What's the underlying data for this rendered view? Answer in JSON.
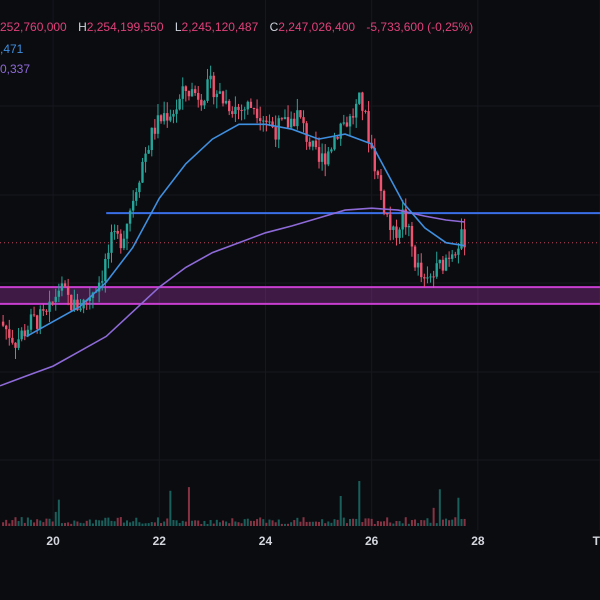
{
  "legend": {
    "o_value": "252,760,000",
    "h_key": "H",
    "h_value": "2,254,199,550",
    "l_key": "L",
    "l_value": "2,245,120,487",
    "c_key": "C",
    "c_value": "2,247,026,400",
    "change": "-5,733,600 (-0,25%)",
    "ma_fast": ",471",
    "ma_slow": "0,337"
  },
  "colors": {
    "background": "#0b0c10",
    "up": "#26a69a",
    "down": "#ef5370",
    "ma_fast": "#3f8fe0",
    "ma_slow": "#8e6ad8",
    "zone": "#c83fd0",
    "hline": "#3a6fe8",
    "price_line": "#ef5370"
  },
  "chart_data": {
    "type": "candlestick",
    "x_ticks": [
      {
        "label": "20",
        "day": 20
      },
      {
        "label": "22",
        "day": 22
      },
      {
        "label": "24",
        "day": 24
      },
      {
        "label": "26",
        "day": 26
      },
      {
        "label": "28",
        "day": 28
      },
      {
        "label": "Th",
        "day": 30.3
      }
    ],
    "x_range": [
      19.0,
      30.3
    ],
    "y_range": [
      2226.0,
      2264.0
    ],
    "y_unit_note": "",
    "close_path": [
      [
        19.0,
        2238.5
      ],
      [
        19.3,
        2236.5
      ],
      [
        19.6,
        2238.5
      ],
      [
        19.9,
        2239.0
      ],
      [
        20.1,
        2242.0
      ],
      [
        20.4,
        2240.0
      ],
      [
        20.6,
        2240.5
      ],
      [
        20.9,
        2243.0
      ],
      [
        21.1,
        2246.5
      ],
      [
        21.3,
        2247.0
      ],
      [
        21.5,
        2251.0
      ],
      [
        21.7,
        2255.0
      ],
      [
        21.9,
        2258.0
      ],
      [
        22.1,
        2259.5
      ],
      [
        22.3,
        2260.0
      ],
      [
        22.5,
        2262.0
      ],
      [
        22.8,
        2261.5
      ],
      [
        23.0,
        2262.5
      ],
      [
        23.2,
        2261.0
      ],
      [
        23.5,
        2260.0
      ],
      [
        23.8,
        2260.5
      ],
      [
        24.0,
        2259.0
      ],
      [
        24.2,
        2258.0
      ],
      [
        24.4,
        2258.5
      ],
      [
        24.6,
        2259.5
      ],
      [
        24.8,
        2257.0
      ],
      [
        25.0,
        2254.5
      ],
      [
        25.2,
        2256.0
      ],
      [
        25.4,
        2258.5
      ],
      [
        25.6,
        2259.0
      ],
      [
        25.8,
        2261.0
      ],
      [
        26.0,
        2256.0
      ],
      [
        26.2,
        2251.0
      ],
      [
        26.4,
        2247.0
      ],
      [
        26.6,
        2249.5
      ],
      [
        26.8,
        2245.0
      ],
      [
        27.0,
        2242.0
      ],
      [
        27.2,
        2243.5
      ],
      [
        27.4,
        2245.0
      ],
      [
        27.6,
        2246.5
      ],
      [
        27.75,
        2247.0
      ]
    ],
    "volume": "random low bars, occasional spikes",
    "ma_fast_points": [
      [
        19.5,
        2237.0
      ],
      [
        20.0,
        2238.5
      ],
      [
        20.5,
        2240.0
      ],
      [
        21.0,
        2242.5
      ],
      [
        21.5,
        2246.0
      ],
      [
        22.0,
        2251.0
      ],
      [
        22.5,
        2254.5
      ],
      [
        23.0,
        2257.0
      ],
      [
        23.5,
        2258.5
      ],
      [
        24.0,
        2258.5
      ],
      [
        24.5,
        2258.0
      ],
      [
        25.0,
        2257.0
      ],
      [
        25.5,
        2257.5
      ],
      [
        26.0,
        2256.5
      ],
      [
        26.3,
        2253.5
      ],
      [
        26.6,
        2250.5
      ],
      [
        27.0,
        2248.0
      ],
      [
        27.4,
        2246.5
      ],
      [
        27.75,
        2246.2
      ]
    ],
    "ma_slow_points": [
      [
        19.0,
        2232.0
      ],
      [
        19.5,
        2233.0
      ],
      [
        20.0,
        2234.0
      ],
      [
        20.5,
        2235.5
      ],
      [
        21.0,
        2237.0
      ],
      [
        21.5,
        2239.5
      ],
      [
        22.0,
        2242.0
      ],
      [
        22.5,
        2244.0
      ],
      [
        23.0,
        2245.5
      ],
      [
        23.5,
        2246.5
      ],
      [
        24.0,
        2247.5
      ],
      [
        24.5,
        2248.2
      ],
      [
        25.0,
        2249.0
      ],
      [
        25.5,
        2249.8
      ],
      [
        26.0,
        2250.0
      ],
      [
        26.5,
        2249.8
      ],
      [
        27.0,
        2249.2
      ],
      [
        27.4,
        2248.8
      ],
      [
        27.75,
        2248.6
      ]
    ],
    "support_zone": [
      2240.3,
      2242.0
    ],
    "resistance_line": {
      "y": 2249.5,
      "x_start": 21.0
    },
    "current_price_line": 2246.5
  }
}
